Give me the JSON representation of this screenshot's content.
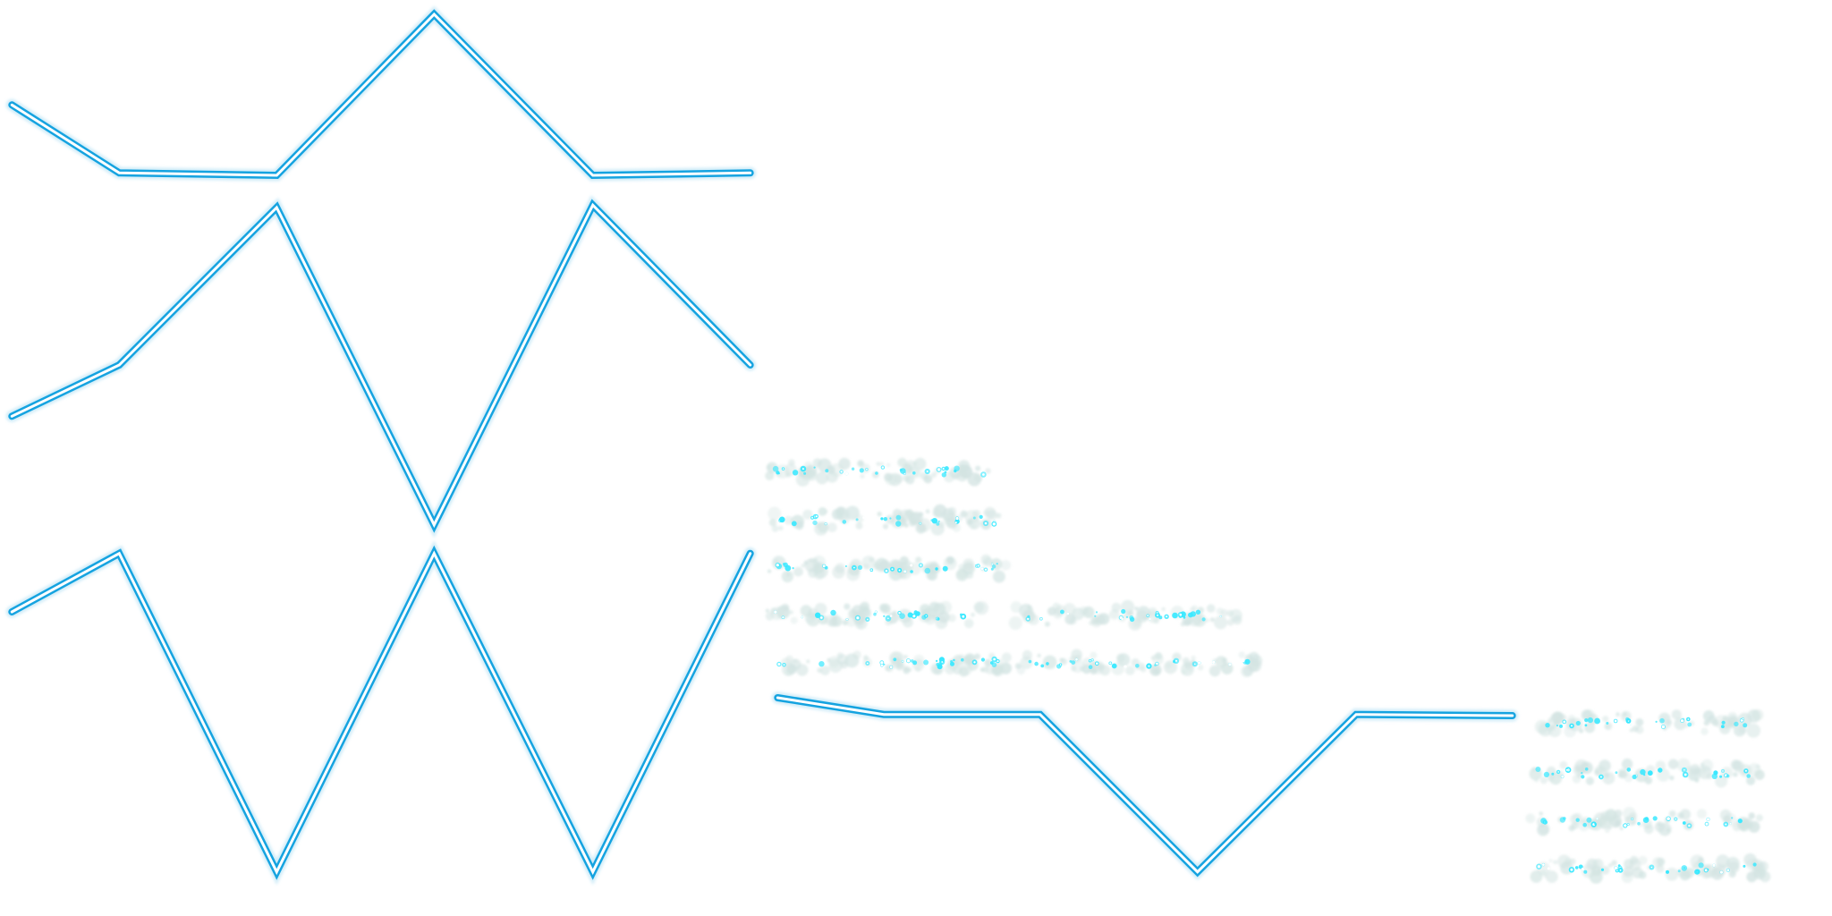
{
  "sheet": {
    "background": "#ffffff",
    "line_style": {
      "glow_color": "#15a3e0",
      "halo_color": "#a9dcf2",
      "core_color": "#ffffff"
    },
    "particle_style": {
      "fog_color": "#d3e4e2",
      "spark_color": "#38e8ff",
      "hot_color": "#ffffff"
    }
  }
}
